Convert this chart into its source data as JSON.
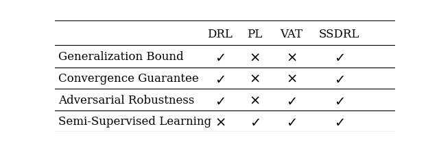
{
  "columns": [
    "DRL",
    "PL",
    "VAT",
    "SSDRL"
  ],
  "rows": [
    "Generalization Bound",
    "Convergence Guarantee",
    "Adversarial Robustness",
    "Semi-Supervised Learning"
  ],
  "cells": [
    [
      true,
      false,
      false,
      true
    ],
    [
      true,
      false,
      false,
      true
    ],
    [
      true,
      false,
      true,
      true
    ],
    [
      false,
      true,
      true,
      true
    ]
  ],
  "background_color": "#ffffff",
  "line_color": "#000000",
  "text_color": "#000000",
  "header_fontsize": 12,
  "row_fontsize": 12,
  "cell_fontsize": 14,
  "figwidth": 6.4,
  "figheight": 2.17,
  "dpi": 100
}
